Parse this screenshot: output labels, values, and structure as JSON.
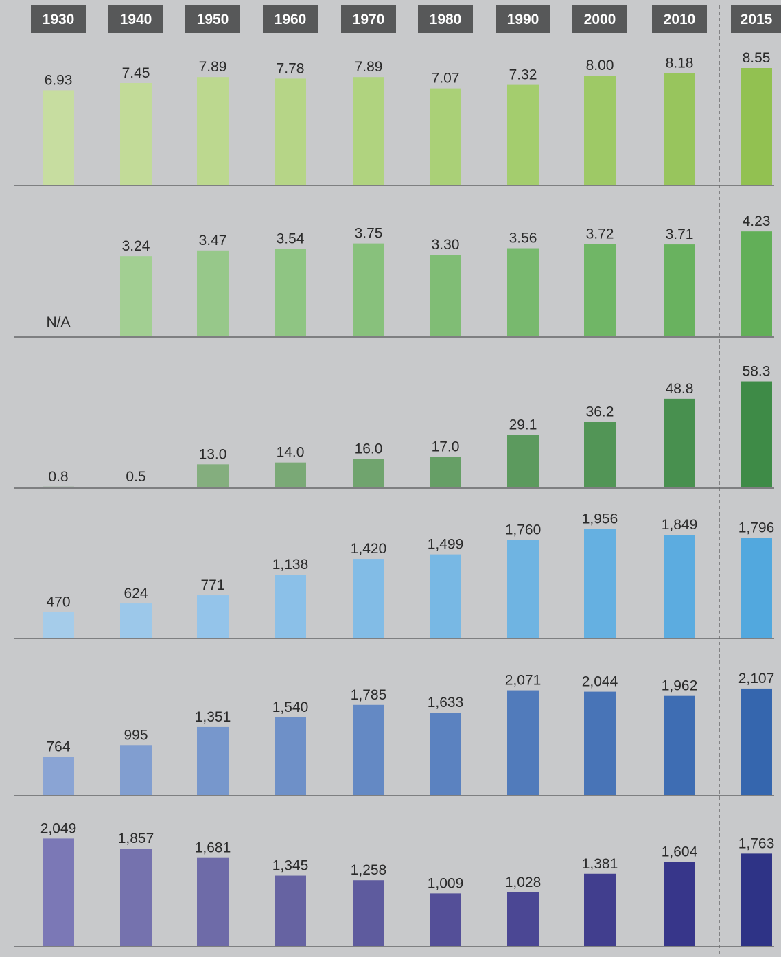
{
  "chart_data": {
    "type": "bar",
    "categories": [
      "1930",
      "1940",
      "1950",
      "1960",
      "1970",
      "1980",
      "1990",
      "2000",
      "2010",
      "2015"
    ],
    "panels": [
      {
        "values": [
          6.93,
          7.45,
          7.89,
          7.78,
          7.89,
          7.07,
          7.32,
          8.0,
          8.18,
          8.55
        ],
        "labels": [
          "6.93",
          "7.45",
          "7.89",
          "7.78",
          "7.89",
          "7.07",
          "7.32",
          "8.00",
          "8.18",
          "8.55"
        ],
        "colors": [
          "#c7dda0",
          "#c2db98",
          "#bcd88f",
          "#b6d587",
          "#b0d37f",
          "#aad077",
          "#a4cd6e",
          "#9ec966",
          "#98c55d",
          "#92c151"
        ],
        "ylim": [
          0,
          10
        ]
      },
      {
        "values": [
          null,
          3.24,
          3.47,
          3.54,
          3.75,
          3.3,
          3.56,
          3.72,
          3.71,
          4.23
        ],
        "labels": [
          "N/A",
          "3.24",
          "3.47",
          "3.54",
          "3.75",
          "3.30",
          "3.56",
          "3.72",
          "3.71",
          "4.23"
        ],
        "colors": [
          "#a9d196",
          "#a2cf92",
          "#97c88a",
          "#8fc583",
          "#88c17c",
          "#80bd75",
          "#78b96e",
          "#70b666",
          "#69b25f",
          "#62af58"
        ],
        "ylim": [
          0,
          5.5
        ]
      },
      {
        "values": [
          0.8,
          0.5,
          13.0,
          14.0,
          16.0,
          17.0,
          29.1,
          36.2,
          48.8,
          58.3
        ],
        "labels": [
          "0.8",
          "0.5",
          "13.0",
          "14.0",
          "16.0",
          "17.0",
          "29.1",
          "36.2",
          "48.8",
          "58.3"
        ],
        "colors": [
          "#4e8f50",
          "#4e8f50",
          "#84ae7e",
          "#7aa976",
          "#70a46e",
          "#669f66",
          "#5c9a5e",
          "#529556",
          "#48904f",
          "#3e8b47"
        ],
        "ylim": [
          0,
          75
        ]
      },
      {
        "values": [
          470,
          624,
          771,
          1138,
          1420,
          1499,
          1760,
          1956,
          1849,
          1796
        ],
        "labels": [
          "470",
          "624",
          "771",
          "1,138",
          "1,420",
          "1,499",
          "1,760",
          "1,956",
          "1,849",
          "1,796"
        ],
        "colors": [
          "#a5ccea",
          "#9cc8ea",
          "#94c4ea",
          "#8bc0e8",
          "#82bce6",
          "#78b8e4",
          "#6fb4e2",
          "#65b0e1",
          "#5cace0",
          "#52a8de"
        ],
        "ylim": [
          0,
          2450
        ]
      },
      {
        "values": [
          764,
          995,
          1351,
          1540,
          1785,
          1633,
          2071,
          2044,
          1962,
          2107
        ],
        "labels": [
          "764",
          "995",
          "1,351",
          "1,540",
          "1,785",
          "1,633",
          "2,071",
          "2,044",
          "1,962",
          "2,107"
        ],
        "colors": [
          "#8aa4d4",
          "#819ed0",
          "#7797cc",
          "#6e90c8",
          "#6489c4",
          "#5b82c0",
          "#517bbb",
          "#4874b7",
          "#3e6db3",
          "#3566ae"
        ],
        "ylim": [
          0,
          2700
        ]
      },
      {
        "values": [
          2049,
          1857,
          1681,
          1345,
          1258,
          1009,
          1028,
          1381,
          1604,
          1763
        ],
        "labels": [
          "2,049",
          "1,857",
          "1,681",
          "1,345",
          "1,258",
          "1,009",
          "1,028",
          "1,381",
          "1,604",
          "1,763"
        ],
        "colors": [
          "#7b78b6",
          "#7572ae",
          "#6e6ba8",
          "#6663a2",
          "#5e5b9e",
          "#544f98",
          "#4b4794",
          "#413e8e",
          "#37368a",
          "#2e3386"
        ],
        "ylim": [
          0,
          2600
        ]
      }
    ],
    "grid": false,
    "legend": "none"
  }
}
